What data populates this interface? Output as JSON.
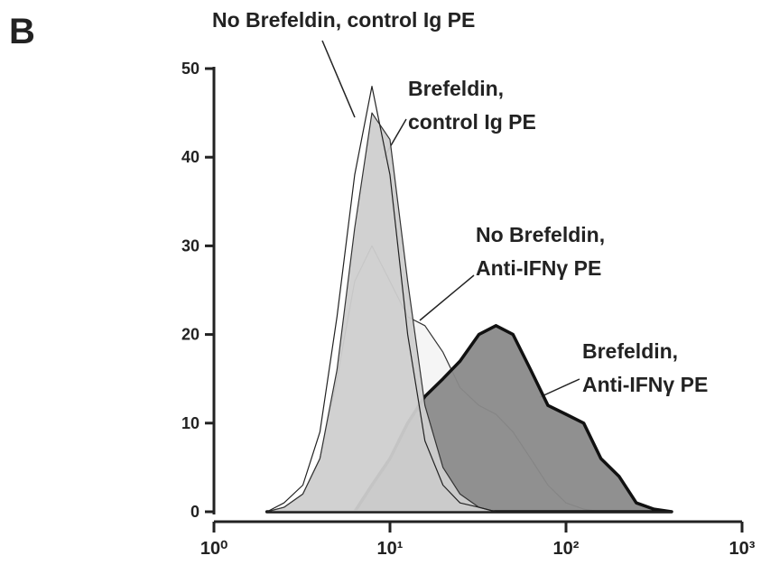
{
  "panel_label": "B",
  "chart_data": {
    "type": "histogram",
    "xscale": "log",
    "xlim": [
      1,
      1000
    ],
    "xticks": [
      {
        "value": 1,
        "label": "10⁰"
      },
      {
        "value": 10,
        "label": "10¹"
      },
      {
        "value": 100,
        "label": "10²"
      },
      {
        "value": 1000,
        "label": "10³"
      }
    ],
    "ylim": [
      0,
      50
    ],
    "yticks": [
      0,
      10,
      20,
      30,
      40,
      50
    ],
    "x": [
      2.0,
      2.5,
      3.2,
      4.0,
      5.0,
      6.3,
      7.9,
      10,
      12.6,
      15.8,
      20,
      25,
      32,
      40,
      50,
      63,
      79,
      100,
      126,
      158,
      200,
      251,
      316,
      398
    ],
    "series": [
      {
        "color": "#f4f4f4",
        "values": [
          0,
          0.5,
          2,
          6,
          15,
          26,
          30,
          26,
          22,
          21,
          18,
          14,
          12,
          11,
          9,
          6,
          3,
          1,
          0.3,
          0,
          0,
          0,
          0,
          0
        ]
      },
      {
        "color": "#8a8a8a",
        "values": [
          0,
          0,
          0,
          0,
          0,
          0,
          3,
          6,
          10,
          13,
          15,
          17,
          20,
          21,
          20,
          16,
          12,
          11,
          10,
          6,
          4,
          1,
          0.3,
          0
        ]
      },
      {
        "color": "#cfcfcf",
        "values": [
          0,
          0.5,
          2,
          6,
          16,
          32,
          45,
          42,
          26,
          12,
          5,
          2,
          0.5,
          0,
          0,
          0,
          0,
          0,
          0,
          0,
          0,
          0,
          0,
          0
        ]
      },
      {
        "color": "#ffffff",
        "values": [
          0,
          1,
          3,
          9,
          22,
          38,
          48,
          38,
          20,
          8,
          3,
          1,
          0.5,
          0,
          0,
          0,
          0,
          0,
          0,
          0,
          0,
          0,
          0,
          0
        ]
      }
    ],
    "annotations": [
      {
        "lines": [
          "No Brefeldin, control Ig PE"
        ]
      },
      {
        "lines": [
          "Brefeldin,",
          "control  Ig PE"
        ]
      },
      {
        "lines": [
          "No Brefeldin,",
          "Anti-IFNγ PE"
        ]
      },
      {
        "lines": [
          "Brefeldin,",
          "Anti-IFNγ PE"
        ]
      }
    ]
  }
}
